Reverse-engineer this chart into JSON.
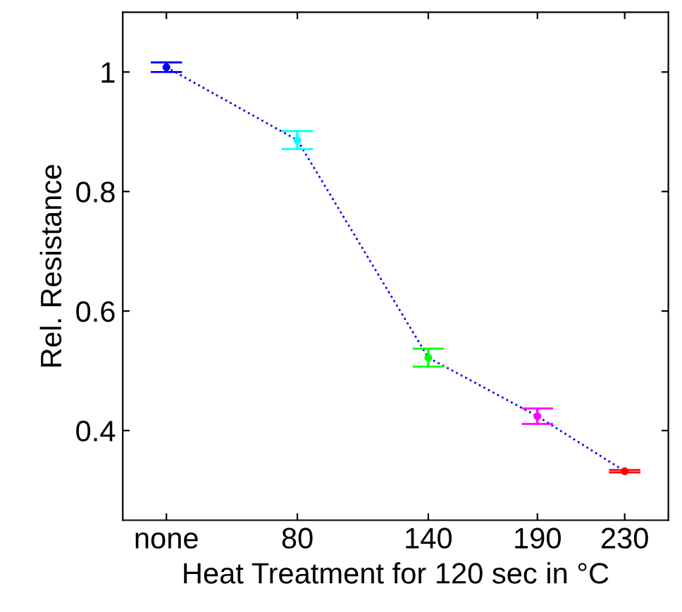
{
  "chart_data": {
    "type": "line",
    "xlabel": "Heat Treatment for 120 sec in °C",
    "ylabel": "Rel. Resistance",
    "x": [
      20,
      80,
      140,
      190,
      230
    ],
    "series": [
      {
        "color": "#0000ff",
        "colors": [
          "#0000ff",
          "#00ffff",
          "#00ff00",
          "#ff00ff",
          "#ff0000"
        ],
        "values": [
          1.008,
          0.886,
          0.522,
          0.424,
          0.332
        ],
        "errors": [
          0.008,
          0.015,
          0.015,
          0.013,
          0.002
        ]
      }
    ],
    "xlim": [
      0,
      250
    ],
    "xticks": [
      {
        "value": 20,
        "label": "none"
      },
      80,
      140,
      190,
      230
    ],
    "ylim": [
      0.25,
      1.1
    ],
    "yticks": [
      0.4,
      0.6,
      0.8,
      {
        "value": 1,
        "label": "1"
      }
    ],
    "grid": false,
    "marker": "circle",
    "line_style": "dotted"
  }
}
